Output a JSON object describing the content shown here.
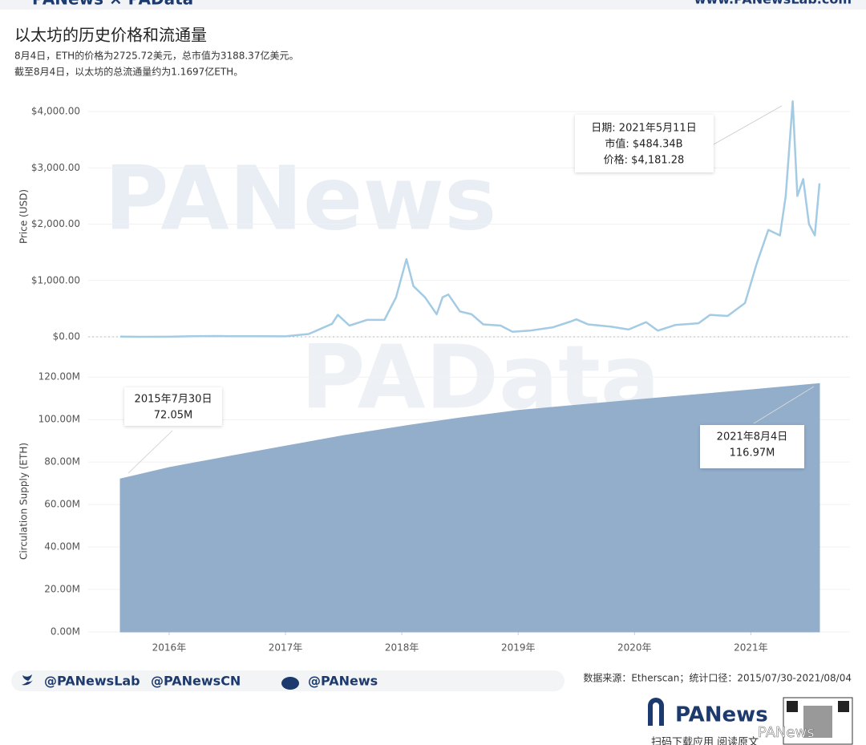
{
  "header": {
    "brand": "PANews × PAData",
    "site": "www.PANewsLab.com"
  },
  "title": "以太坊的历史价格和流通量",
  "subtitles": [
    "8月4日，ETH的价格为2725.72美元，总市值为3188.37亿美元。",
    "截至8月4日，以太坊的总流通量约为1.1697亿ETH。"
  ],
  "watermarks": [
    "PANews",
    "PAData"
  ],
  "chart_data": [
    {
      "type": "line",
      "y_label": "Price (USD)",
      "color": "#a3cbe3",
      "grid": true,
      "xlim": [
        2015.58,
        2021.59
      ],
      "ylim": [
        0,
        4300
      ],
      "yticks": [
        {
          "value": 0,
          "label": "$0.00"
        },
        {
          "value": 1000,
          "label": "$1,000.00"
        },
        {
          "value": 2000,
          "label": "$2,000.00"
        },
        {
          "value": 3000,
          "label": "$3,000.00"
        },
        {
          "value": 4000,
          "label": "$4,000.00"
        }
      ],
      "x": [
        2015.58,
        2015.75,
        2016.0,
        2016.2,
        2016.45,
        2016.5,
        2016.75,
        2017.0,
        2017.2,
        2017.4,
        2017.45,
        2017.55,
        2017.7,
        2017.85,
        2017.95,
        2018.04,
        2018.1,
        2018.2,
        2018.3,
        2018.35,
        2018.4,
        2018.5,
        2018.6,
        2018.7,
        2018.85,
        2018.95,
        2019.1,
        2019.3,
        2019.45,
        2019.5,
        2019.6,
        2019.8,
        2019.95,
        2020.1,
        2020.2,
        2020.35,
        2020.55,
        2020.65,
        2020.8,
        2020.95,
        2021.05,
        2021.15,
        2021.25,
        2021.3,
        2021.36,
        2021.4,
        2021.45,
        2021.5,
        2021.55,
        2021.59
      ],
      "values": [
        2.8,
        0.7,
        1,
        11,
        14,
        12,
        12,
        8,
        50,
        230,
        390,
        200,
        300,
        300,
        700,
        1380,
        900,
        700,
        400,
        700,
        750,
        450,
        400,
        220,
        200,
        90,
        110,
        170,
        270,
        310,
        220,
        180,
        130,
        260,
        110,
        210,
        240,
        390,
        370,
        600,
        1300,
        1900,
        1800,
        2500,
        4181.28,
        2500,
        2800,
        2000,
        1800,
        2725.72
      ],
      "annotation": [
        "日期: 2021年5月11日",
        "市值: $484.34B",
        "价格: $4,181.28"
      ]
    },
    {
      "type": "area",
      "y_label": "Circulation Supply (ETH)",
      "color": "#92aecb",
      "grid": true,
      "xlim": [
        2015.58,
        2021.59
      ],
      "ylim": [
        0,
        125
      ],
      "yticks": [
        {
          "value": 0,
          "label": "0.00M"
        },
        {
          "value": 20,
          "label": "20.00M"
        },
        {
          "value": 40,
          "label": "40.00M"
        },
        {
          "value": 60,
          "label": "60.00M"
        },
        {
          "value": 80,
          "label": "80.00M"
        },
        {
          "value": 100,
          "label": "100.00M"
        },
        {
          "value": 120,
          "label": "120.00M"
        }
      ],
      "xticks": [
        {
          "value": 2016,
          "label": "2016年"
        },
        {
          "value": 2017,
          "label": "2017年"
        },
        {
          "value": 2018,
          "label": "2018年"
        },
        {
          "value": 2019,
          "label": "2019年"
        },
        {
          "value": 2020,
          "label": "2020年"
        },
        {
          "value": 2021,
          "label": "2021年"
        }
      ],
      "x": [
        2015.58,
        2016.0,
        2016.5,
        2017.0,
        2017.5,
        2018.0,
        2018.5,
        2019.0,
        2019.5,
        2020.0,
        2020.5,
        2021.0,
        2021.59
      ],
      "values": [
        72.05,
        77.4,
        82.5,
        87.5,
        92.5,
        96.8,
        100.8,
        104.3,
        106.8,
        109.2,
        111.6,
        114,
        116.97
      ],
      "annotations": [
        [
          "2015年7月30日",
          "72.05M"
        ],
        [
          "2021年8月4日",
          "116.97M"
        ]
      ]
    }
  ],
  "footer": {
    "handles": [
      "@PANewsLab",
      "@PANewsCN",
      "@PANews"
    ],
    "source": "数据来源：Etherscan；统计口径：2015/07/30-2021/08/04",
    "logo": "PANews",
    "qr_caption": "扫码下载应用 阅读原文",
    "wechat": "PANews"
  }
}
